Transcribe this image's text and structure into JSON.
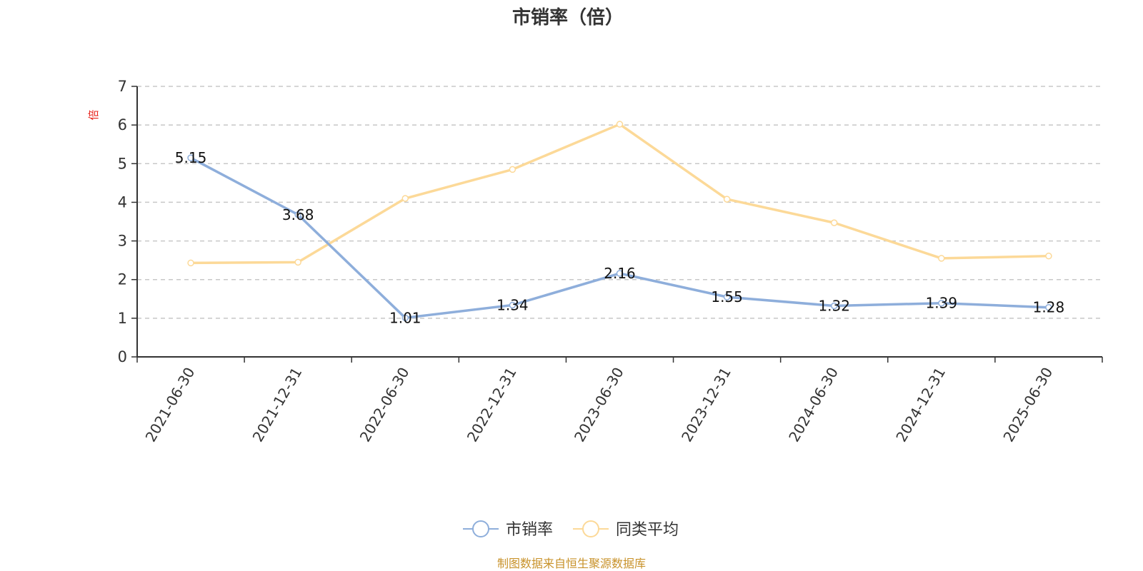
{
  "chart_data": {
    "type": "line",
    "title": "市销率（倍）",
    "y_unit_label": "倍",
    "ylim": [
      0,
      7
    ],
    "yticks": [
      0,
      1,
      2,
      3,
      4,
      5,
      6,
      7
    ],
    "grid": true,
    "legend_position": "bottom",
    "categories": [
      "2021-06-30",
      "2021-12-31",
      "2022-06-30",
      "2022-12-31",
      "2023-06-30",
      "2023-12-31",
      "2024-06-30",
      "2024-12-31",
      "2025-06-30"
    ],
    "series": [
      {
        "name": "市销率",
        "color": "#8eaedb",
        "values": [
          5.15,
          3.68,
          1.01,
          1.34,
          2.16,
          1.55,
          1.32,
          1.39,
          1.28
        ],
        "labels": [
          "5.15",
          "3.68",
          "1.01",
          "1.34",
          "2.16",
          "1.55",
          "1.32",
          "1.39",
          "1.28"
        ],
        "show_labels": true
      },
      {
        "name": "同类平均",
        "color": "#fcd998",
        "values": [
          2.43,
          2.45,
          4.1,
          4.85,
          6.02,
          4.08,
          3.47,
          2.55,
          2.61
        ],
        "show_labels": false
      }
    ],
    "source_note": "制图数据来自恒生聚源数据库"
  }
}
